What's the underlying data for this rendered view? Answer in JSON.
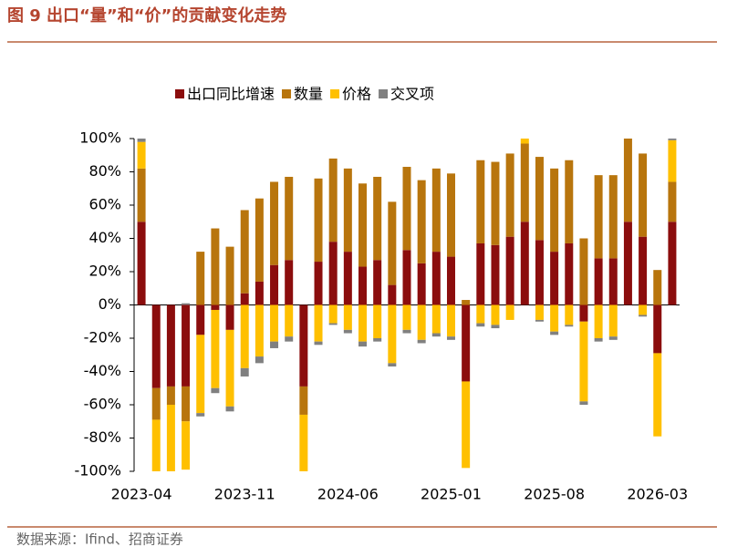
{
  "title": "图 9 出口“量”和“价”的贡献变化走势",
  "source": "数据来源：Ifind、招商证券",
  "chart_data": {
    "type": "bar",
    "stacked": true,
    "categories": [
      "2023-04",
      null,
      null,
      null,
      null,
      null,
      null,
      "2023-11",
      null,
      null,
      null,
      null,
      null,
      null,
      "2024-06",
      null,
      null,
      null,
      null,
      null,
      null,
      "2025-01",
      null,
      null,
      null,
      null,
      null,
      null,
      "2025-08",
      null,
      null,
      null,
      null,
      null,
      null,
      "2026-03",
      null
    ],
    "series": [
      {
        "name": "出口同比增速",
        "color": "#8b0d0d",
        "values": [
          50,
          -50,
          -49,
          -49,
          -18,
          -3,
          -15,
          7,
          14,
          24,
          27,
          -49,
          26,
          38,
          32,
          23,
          27,
          12,
          33,
          25,
          32,
          29,
          -46,
          37,
          36,
          41,
          50,
          39,
          32,
          37,
          -10,
          28,
          28,
          50,
          41,
          -29,
          50
        ]
      },
      {
        "name": "数量",
        "color": "#b8750d",
        "values": [
          32,
          -19,
          -11,
          -21,
          32,
          46,
          35,
          50,
          50,
          50,
          50,
          -17,
          50,
          50,
          50,
          50,
          50,
          50,
          50,
          50,
          50,
          50,
          3,
          50,
          50,
          50,
          47,
          50,
          50,
          50,
          40,
          50,
          50,
          50,
          50,
          21,
          24
        ]
      },
      {
        "name": "价格",
        "color": "#ffc000",
        "values": [
          16,
          -31,
          -40,
          -29,
          -47,
          -47,
          -46,
          -38,
          -31,
          -22,
          -19,
          -34,
          -22,
          -11,
          -15,
          -22,
          -20,
          -35,
          -15,
          -21,
          -17,
          -19,
          -52,
          -11,
          -12,
          -9,
          3,
          -9,
          -16,
          -12,
          -48,
          -20,
          -19,
          0,
          -6,
          -50,
          25
        ]
      },
      {
        "name": "交叉项",
        "color": "#808080",
        "values": [
          2,
          0,
          0,
          1,
          -2,
          -3,
          -3,
          -5,
          -4,
          -4,
          -3,
          0,
          -2,
          -1,
          -2,
          -3,
          -2,
          -2,
          -2,
          -2,
          -2,
          -2,
          0,
          -2,
          -2,
          0,
          0,
          -1,
          -2,
          -1,
          -2,
          -2,
          -2,
          0,
          -1,
          0,
          1
        ]
      }
    ],
    "ylim": [
      -100,
      100
    ],
    "yticks": [
      {
        "value": -100,
        "label": "-100%"
      },
      {
        "value": -80,
        "label": "-80%"
      },
      {
        "value": -60,
        "label": "-60%"
      },
      {
        "value": -40,
        "label": "-40%"
      },
      {
        "value": -20,
        "label": "-20%"
      },
      {
        "value": 0,
        "label": "0%"
      },
      {
        "value": 20,
        "label": "20%"
      },
      {
        "value": 40,
        "label": "40%"
      },
      {
        "value": 60,
        "label": "60%"
      },
      {
        "value": 80,
        "label": "80%"
      },
      {
        "value": 100,
        "label": "100%"
      }
    ],
    "legend": "top"
  }
}
